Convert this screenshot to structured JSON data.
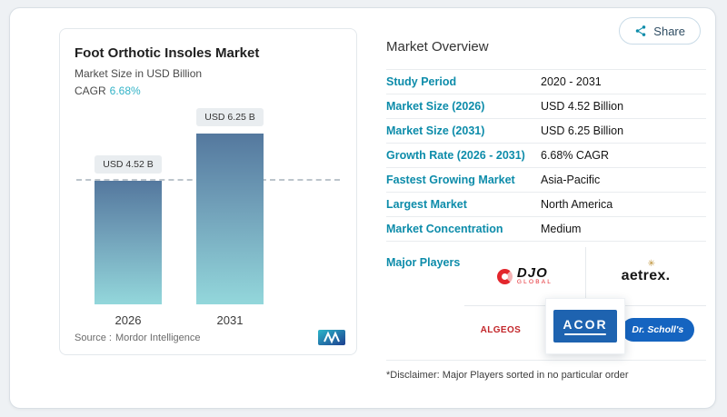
{
  "colors": {
    "accent": "#0d8caa",
    "cagr_value": "#33b3c7",
    "bar_top": "#54789e",
    "bar_bottom": "#93d7db"
  },
  "share": {
    "label": "Share",
    "icon": "share-nodes-icon"
  },
  "panel": {
    "title": "Foot Orthotic Insoles Market",
    "subtitle": "Market Size in USD Billion",
    "cagr_label": "CAGR",
    "cagr_value": "6.68%",
    "source_label": "Source :",
    "source_value": "Mordor Intelligence",
    "logo": "mordor-intelligence-logo"
  },
  "chart_data": {
    "type": "bar",
    "title": "Foot Orthotic Insoles Market",
    "ylabel": "Market Size in USD Billion",
    "categories": [
      "2026",
      "2031"
    ],
    "values": [
      4.52,
      6.25
    ],
    "value_labels": [
      "USD 4.52 B",
      "USD 6.25 B"
    ],
    "ylim": [
      0,
      6.8
    ],
    "grid": false,
    "annotations": [
      {
        "type": "dashed-reference-line",
        "at": 4.52
      }
    ]
  },
  "overview": {
    "title": "Market Overview",
    "rows": [
      {
        "label": "Study Period",
        "value": "2020 - 2031"
      },
      {
        "label": "Market Size (2026)",
        "value": "USD 4.52 Billion"
      },
      {
        "label": "Market Size (2031)",
        "value": "USD 6.25 Billion"
      },
      {
        "label": "Growth Rate (2026 - 2031)",
        "value": "6.68% CAGR"
      },
      {
        "label": "Fastest Growing Market",
        "value": "Asia-Pacific"
      },
      {
        "label": "Largest Market",
        "value": "North America"
      },
      {
        "label": "Market Concentration",
        "value": "Medium"
      }
    ],
    "major_players_label": "Major Players",
    "players": [
      {
        "name": "DJO Global",
        "line1": "DJO",
        "line2": "GLOBAL"
      },
      {
        "name": "Aetrex",
        "text": "aetrex.",
        "star": "✳"
      },
      {
        "name": "Algeos",
        "text": "ALGEOS"
      },
      {
        "name": "Acor",
        "text": "ACOR"
      },
      {
        "name": "Dr. Scholl's",
        "text": "Dr. Scholl's"
      }
    ],
    "disclaimer": "*Disclaimer: Major Players sorted in no particular order"
  }
}
